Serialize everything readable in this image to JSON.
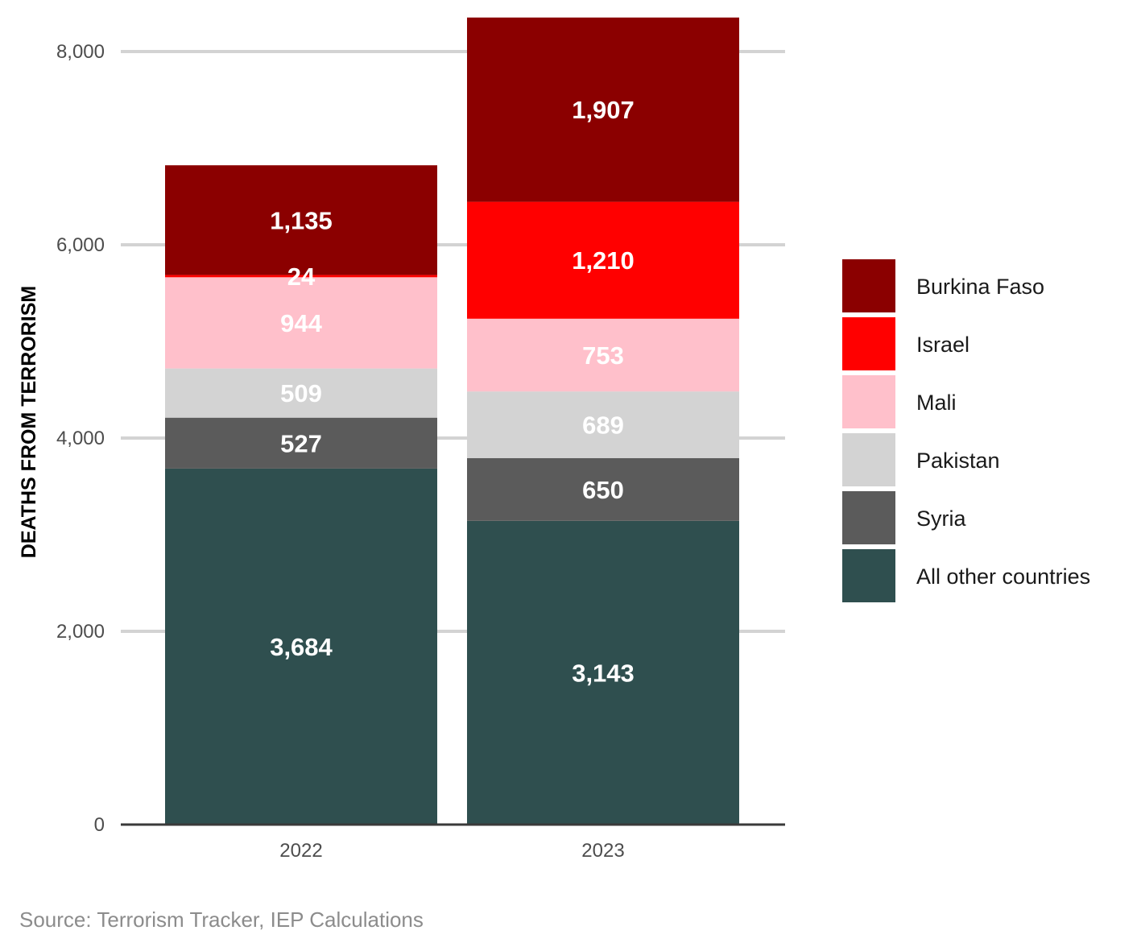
{
  "chart_data": {
    "type": "bar",
    "stacked": true,
    "categories": [
      "2022",
      "2023"
    ],
    "series": [
      {
        "name": "All other countries",
        "color": "#2f4f4f",
        "values": [
          3684,
          3143
        ]
      },
      {
        "name": "Syria",
        "color": "#5b5b5b",
        "values": [
          527,
          650
        ]
      },
      {
        "name": "Pakistan",
        "color": "#d3d3d3",
        "values": [
          509,
          689
        ]
      },
      {
        "name": "Mali",
        "color": "#ffc0cb",
        "values": [
          944,
          753
        ]
      },
      {
        "name": "Israel",
        "color": "#ff0000",
        "values": [
          24,
          1210
        ]
      },
      {
        "name": "Burkina Faso",
        "color": "#8b0000",
        "values": [
          1135,
          1907
        ]
      }
    ],
    "data_labels": [
      [
        "3,684",
        "3,143"
      ],
      [
        "527",
        "650"
      ],
      [
        "509",
        "689"
      ],
      [
        "944",
        "753"
      ],
      [
        "24",
        "1,210"
      ],
      [
        "1,135",
        "1,907"
      ]
    ],
    "ylabel": "DEATHS FROM TERRORISM",
    "xlabel": "",
    "ylim": [
      0,
      8000
    ],
    "yticks": [
      0,
      2000,
      4000,
      6000,
      8000
    ],
    "ytick_labels": [
      "0",
      "2,000",
      "4,000",
      "6,000",
      "8,000"
    ],
    "grid": true,
    "legend": {
      "position": "right",
      "order": [
        "Burkina Faso",
        "Israel",
        "Mali",
        "Pakistan",
        "Syria",
        "All other countries"
      ]
    },
    "source": "Source: Terrorism Tracker, IEP Calculations"
  }
}
